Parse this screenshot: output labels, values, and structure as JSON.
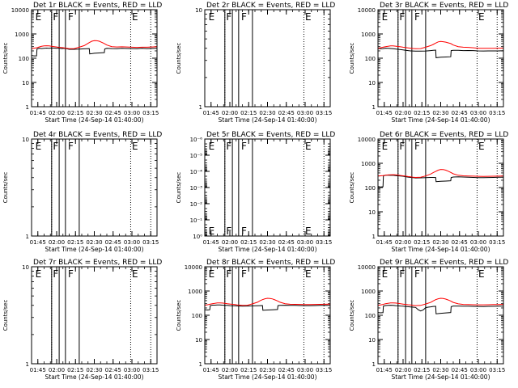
{
  "colors": {
    "events": "#000000",
    "lld": "#ff0000",
    "background": "#ffffff",
    "axis": "#000000"
  },
  "common": {
    "xlabel": "Start Time (24-Sep-14 01:40:00)",
    "ylabel": "Counts/sec",
    "x_tick_labels": [
      "01:45",
      "02:00",
      "02:15",
      "02:30",
      "02:45",
      "03:00",
      "03:15"
    ],
    "x_tick_minutes": [
      5,
      20,
      35,
      50,
      65,
      80,
      95
    ],
    "xlim_minutes": [
      0,
      100
    ],
    "solid_markers_min": [
      16,
      22,
      27,
      38
    ],
    "dotted_markers_min": [
      16,
      79,
      95
    ],
    "flag_labels": [
      {
        "text": "E",
        "x": 3
      },
      {
        "text": "F",
        "x": 17
      },
      {
        "text": "F",
        "x": 29
      },
      {
        "text": "E",
        "x": 80
      }
    ]
  },
  "chart_data": [
    {
      "type": "line",
      "title": "Det 1r BLACK = Events, RED = LLD",
      "scale": "log",
      "ylim": [
        1,
        10000
      ],
      "yticks": [
        1,
        10,
        100,
        1000,
        10000
      ],
      "ytick_labels": [
        "1",
        "10",
        "100",
        "1000",
        "10000"
      ],
      "has_data": true,
      "series": [
        {
          "name": "Events",
          "color": "#000000",
          "x": [
            0,
            2,
            4,
            4.3,
            6,
            8,
            10,
            12,
            14,
            16,
            18,
            20,
            22,
            24,
            26,
            28,
            30,
            34,
            38,
            42,
            44,
            46,
            46.3,
            50,
            54,
            58,
            58.3,
            60,
            64,
            68,
            72,
            76,
            80,
            84,
            88,
            92,
            96,
            100
          ],
          "y": [
            130,
            125,
            125,
            240,
            260,
            250,
            255,
            262,
            255,
            265,
            262,
            258,
            262,
            250,
            255,
            245,
            232,
            232,
            236,
            244,
            248,
            250,
            150,
            160,
            165,
            170,
            240,
            255,
            250,
            248,
            256,
            252,
            250,
            246,
            255,
            250,
            254,
            260
          ]
        },
        {
          "name": "LLD",
          "color": "#ff0000",
          "x": [
            0,
            2,
            4,
            6,
            8,
            10,
            12,
            14,
            16,
            18,
            20,
            22,
            24,
            26,
            28,
            30,
            34,
            38,
            42,
            44,
            46,
            48,
            50,
            52,
            54,
            56,
            58,
            60,
            64,
            68,
            72,
            76,
            80,
            84,
            88,
            92,
            96,
            100
          ],
          "y": [
            250,
            260,
            270,
            290,
            310,
            320,
            325,
            320,
            310,
            300,
            290,
            280,
            275,
            265,
            255,
            245,
            250,
            285,
            330,
            380,
            440,
            500,
            530,
            525,
            500,
            450,
            400,
            350,
            300,
            290,
            295,
            290,
            285,
            280,
            285,
            285,
            290,
            300
          ]
        }
      ]
    },
    {
      "type": "line",
      "title": "Det 2r BLACK = Events, RED = LLD",
      "scale": "log",
      "ylim": [
        1,
        10
      ],
      "yticks": [
        1,
        10
      ],
      "ytick_labels": [
        "1",
        "10"
      ],
      "has_data": false,
      "series": []
    },
    {
      "type": "line",
      "title": "Det 3r BLACK = Events, RED = LLD",
      "scale": "log",
      "ylim": [
        1,
        10000
      ],
      "yticks": [
        1,
        10,
        100,
        1000,
        10000
      ],
      "ytick_labels": [
        "1",
        "10",
        "100",
        "1000",
        "10000"
      ],
      "has_data": true,
      "series": [
        {
          "name": "Events",
          "color": "#000000",
          "x": [
            0,
            2,
            4,
            6,
            8,
            10,
            12,
            14,
            16,
            18,
            20,
            22,
            24,
            26,
            28,
            30,
            34,
            38,
            42,
            44,
            46,
            46.3,
            50,
            54,
            58,
            58.3,
            60,
            64,
            68,
            72,
            76,
            80,
            84,
            88,
            92,
            96,
            100
          ],
          "y": [
            255,
            248,
            250,
            260,
            255,
            252,
            248,
            240,
            232,
            225,
            218,
            210,
            205,
            200,
            198,
            196,
            195,
            198,
            205,
            210,
            215,
            105,
            110,
            112,
            115,
            205,
            210,
            210,
            205,
            208,
            206,
            200,
            198,
            200,
            200,
            200,
            202
          ]
        },
        {
          "name": "LLD",
          "color": "#ff0000",
          "x": [
            0,
            2,
            4,
            6,
            8,
            10,
            12,
            14,
            16,
            18,
            20,
            22,
            24,
            26,
            28,
            30,
            34,
            38,
            42,
            44,
            46,
            48,
            50,
            52,
            54,
            56,
            58,
            60,
            64,
            68,
            72,
            76,
            80,
            84,
            88,
            92,
            96,
            100
          ],
          "y": [
            260,
            270,
            285,
            300,
            310,
            320,
            320,
            315,
            305,
            295,
            285,
            275,
            268,
            260,
            252,
            245,
            250,
            285,
            330,
            370,
            420,
            470,
            490,
            480,
            460,
            430,
            400,
            350,
            300,
            285,
            280,
            270,
            258,
            255,
            256,
            258,
            260,
            262
          ]
        }
      ]
    },
    {
      "type": "line",
      "title": "Det 4r BLACK = Events, RED = LLD",
      "scale": "log",
      "ylim": [
        1,
        10
      ],
      "yticks": [
        1,
        10
      ],
      "ytick_labels": [
        "1",
        "10"
      ],
      "has_data": false,
      "series": []
    },
    {
      "type": "line",
      "title": "Det 5r BLACK = Events, RED = LLD",
      "scale": "log",
      "ylim": [
        1,
        1e-06
      ],
      "yticks": [
        1,
        0.1,
        0.01,
        0.001,
        0.0001,
        1e-05,
        1e-06
      ],
      "ytick_labels": [
        "10⁰",
        "10⁻¹",
        "10⁻²",
        "10⁻³",
        "10⁻⁴",
        "10⁻⁵",
        "10⁻⁶"
      ],
      "has_data": false,
      "series": []
    },
    {
      "type": "line",
      "title": "Det 6r BLACK = Events, RED = LLD",
      "scale": "log",
      "ylim": [
        1,
        10000
      ],
      "yticks": [
        1,
        10,
        100,
        1000,
        10000
      ],
      "ytick_labels": [
        "1",
        "10",
        "100",
        "1000",
        "10000"
      ],
      "has_data": true,
      "series": [
        {
          "name": "Events",
          "color": "#000000",
          "x": [
            0,
            2,
            4,
            4.3,
            6,
            8,
            10,
            12,
            14,
            16,
            18,
            20,
            22,
            24,
            26,
            28,
            30,
            34,
            38,
            42,
            44,
            46,
            46.3,
            50,
            54,
            58,
            58.3,
            60,
            64,
            68,
            72,
            76,
            80,
            84,
            88,
            92,
            96,
            100
          ],
          "y": [
            110,
            105,
            108,
            300,
            320,
            320,
            318,
            320,
            312,
            305,
            300,
            292,
            280,
            270,
            262,
            255,
            250,
            252,
            258,
            262,
            262,
            260,
            175,
            180,
            185,
            190,
            260,
            272,
            275,
            272,
            268,
            262,
            258,
            256,
            260,
            262,
            265,
            268
          ]
        },
        {
          "name": "LLD",
          "color": "#ff0000",
          "x": [
            0,
            2,
            4,
            6,
            8,
            10,
            12,
            14,
            16,
            18,
            20,
            22,
            24,
            26,
            28,
            30,
            34,
            38,
            42,
            44,
            46,
            48,
            50,
            52,
            54,
            56,
            58,
            60,
            64,
            68,
            72,
            76,
            80,
            84,
            88,
            92,
            96,
            100
          ],
          "y": [
            300,
            305,
            310,
            320,
            330,
            335,
            338,
            335,
            325,
            315,
            305,
            295,
            285,
            275,
            268,
            262,
            268,
            300,
            360,
            410,
            460,
            520,
            560,
            550,
            520,
            470,
            420,
            370,
            320,
            305,
            300,
            295,
            290,
            288,
            290,
            292,
            296,
            300
          ]
        }
      ]
    },
    {
      "type": "line",
      "title": "Det 7r BLACK = Events, RED = LLD",
      "scale": "log",
      "ylim": [
        1,
        10
      ],
      "yticks": [
        1,
        10
      ],
      "ytick_labels": [
        "1",
        "10"
      ],
      "has_data": false,
      "series": []
    },
    {
      "type": "line",
      "title": "Det 8r BLACK = Events, RED = LLD",
      "scale": "log",
      "ylim": [
        1,
        10000
      ],
      "yticks": [
        1,
        10,
        100,
        1000,
        10000
      ],
      "ytick_labels": [
        "1",
        "10",
        "100",
        "1000",
        "10000"
      ],
      "has_data": true,
      "series": [
        {
          "name": "Events",
          "color": "#000000",
          "x": [
            0,
            2,
            4,
            4.3,
            6,
            8,
            10,
            12,
            14,
            16,
            18,
            20,
            22,
            24,
            26,
            28,
            30,
            34,
            38,
            42,
            44,
            46,
            46.3,
            50,
            54,
            58,
            58.3,
            60,
            64,
            68,
            72,
            76,
            80,
            84,
            88,
            92,
            96,
            100
          ],
          "y": [
            170,
            165,
            168,
            250,
            262,
            262,
            265,
            268,
            262,
            258,
            255,
            250,
            248,
            245,
            242,
            240,
            238,
            240,
            244,
            248,
            250,
            252,
            160,
            165,
            168,
            172,
            250,
            258,
            260,
            258,
            255,
            252,
            250,
            250,
            252,
            255,
            256,
            258
          ]
        },
        {
          "name": "LLD",
          "color": "#ff0000",
          "x": [
            0,
            2,
            4,
            6,
            8,
            10,
            12,
            14,
            16,
            18,
            20,
            22,
            24,
            26,
            28,
            30,
            34,
            38,
            42,
            44,
            46,
            48,
            50,
            52,
            54,
            56,
            58,
            60,
            64,
            68,
            72,
            76,
            80,
            84,
            88,
            92,
            96,
            100
          ],
          "y": [
            260,
            270,
            285,
            300,
            310,
            320,
            322,
            318,
            308,
            298,
            290,
            282,
            275,
            268,
            262,
            255,
            260,
            295,
            345,
            395,
            440,
            480,
            500,
            492,
            470,
            430,
            390,
            345,
            300,
            285,
            282,
            280,
            278,
            278,
            280,
            282,
            285,
            288
          ]
        }
      ]
    },
    {
      "type": "line",
      "title": "Det 9r BLACK = Events, RED = LLD",
      "scale": "log",
      "ylim": [
        1,
        10000
      ],
      "yticks": [
        1,
        10,
        100,
        1000,
        10000
      ],
      "ytick_labels": [
        "1",
        "10",
        "100",
        "1000",
        "10000"
      ],
      "has_data": true,
      "series": [
        {
          "name": "Events",
          "color": "#000000",
          "x": [
            0,
            2,
            4,
            4.3,
            6,
            8,
            10,
            12,
            14,
            16,
            18,
            20,
            22,
            24,
            26,
            28,
            30,
            32,
            34,
            36,
            38,
            40,
            42,
            44,
            46,
            46.3,
            50,
            54,
            58,
            58.3,
            60,
            64,
            68,
            72,
            76,
            80,
            84,
            88,
            92,
            96,
            100
          ],
          "y": [
            130,
            126,
            128,
            240,
            252,
            255,
            260,
            258,
            250,
            245,
            240,
            236,
            230,
            225,
            220,
            215,
            210,
            170,
            150,
            165,
            205,
            215,
            222,
            230,
            235,
            115,
            120,
            125,
            130,
            225,
            240,
            240,
            238,
            236,
            232,
            230,
            228,
            232,
            235,
            238,
            240
          ]
        },
        {
          "name": "LLD",
          "color": "#ff0000",
          "x": [
            0,
            2,
            4,
            6,
            8,
            10,
            12,
            14,
            16,
            18,
            20,
            22,
            24,
            26,
            28,
            30,
            34,
            38,
            42,
            44,
            46,
            48,
            50,
            52,
            54,
            56,
            58,
            60,
            64,
            68,
            72,
            76,
            80,
            84,
            88,
            92,
            96,
            100
          ],
          "y": [
            255,
            265,
            280,
            300,
            312,
            320,
            322,
            318,
            308,
            298,
            288,
            280,
            272,
            265,
            258,
            250,
            256,
            290,
            340,
            390,
            440,
            480,
            500,
            490,
            465,
            425,
            385,
            340,
            295,
            280,
            276,
            272,
            270,
            270,
            272,
            275,
            278,
            282
          ]
        }
      ]
    }
  ]
}
